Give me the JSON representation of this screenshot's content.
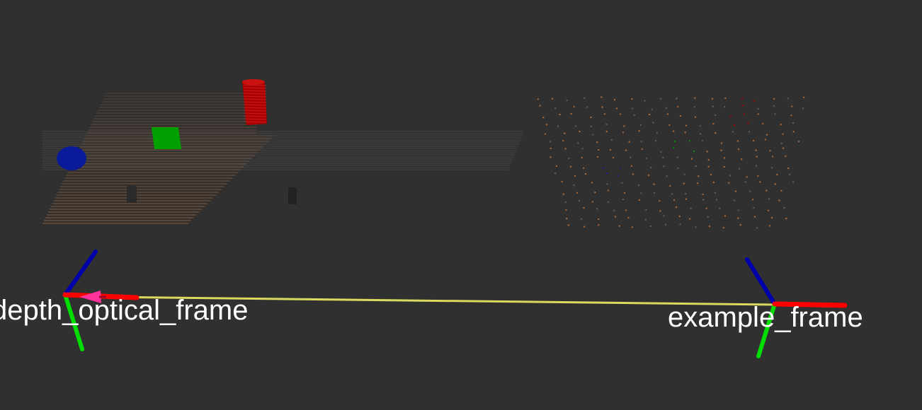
{
  "viewport": {
    "background_color": "#303030"
  },
  "frames": [
    {
      "name": "depth_optical_frame",
      "label": "depth_optical_frame"
    },
    {
      "name": "example_frame",
      "label": "example_frame"
    }
  ],
  "colors": {
    "axis_x": "#ff0000",
    "axis_y": "#00dd00",
    "axis_z": "#0000aa",
    "link": "#dada60",
    "arrow": "#ff3399",
    "label_text": "#ffffff",
    "pointcloud_orange": "#c8783c",
    "pointcloud_gray": "#6a6a6a",
    "sphere": "#0a1a99",
    "cylinder": "#bb0000",
    "cube": "#00a000"
  },
  "icons": {
    "axes": "tf-axes-icon",
    "arrow": "tf-arrow-icon",
    "sphere": "sphere-marker-icon",
    "cylinder": "cylinder-marker-icon",
    "cube": "cube-marker-icon"
  }
}
